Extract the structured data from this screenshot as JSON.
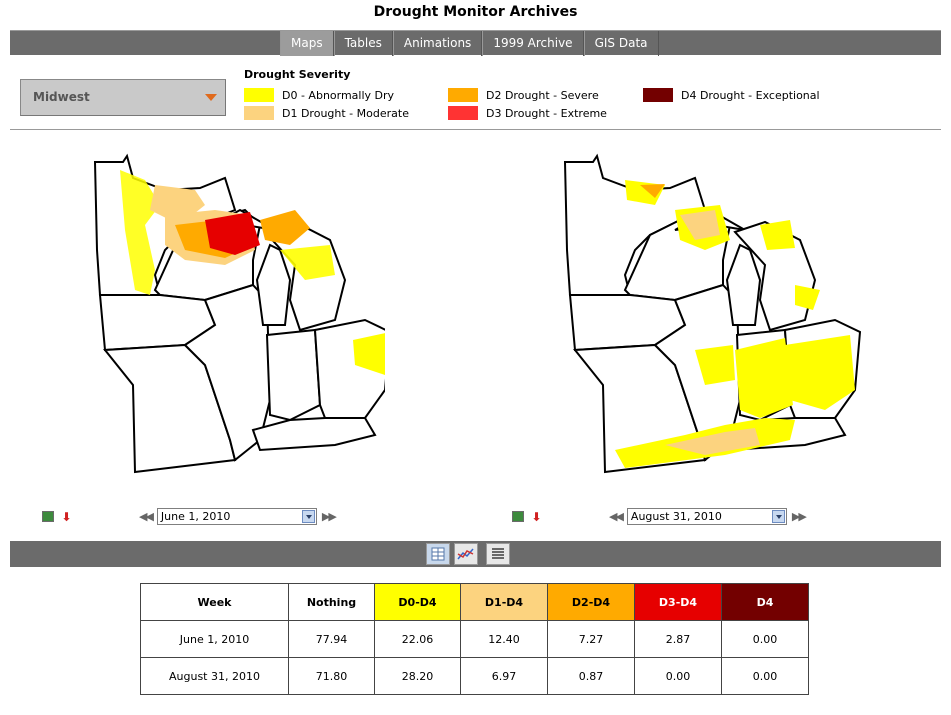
{
  "page_title": "Drought Monitor Archives",
  "nav": {
    "tabs": [
      {
        "label": "Maps",
        "active": true
      },
      {
        "label": "Tables"
      },
      {
        "label": "Animations"
      },
      {
        "label": "1999 Archive"
      },
      {
        "label": "GIS Data"
      }
    ]
  },
  "region_select": {
    "value": "Midwest"
  },
  "legend": {
    "title": "Drought Severity",
    "items": [
      {
        "label": "D0 - Abnormally Dry",
        "color": "#ffff00"
      },
      {
        "label": "D1 Drought - Moderate",
        "color": "#fcd37f"
      },
      {
        "label": "D2 Drought - Severe",
        "color": "#ffaa00"
      },
      {
        "label": "D3 Drought - Extreme",
        "color": "#ff3333"
      },
      {
        "label": "D4 Drought - Exceptional",
        "color": "#730000"
      }
    ]
  },
  "maps": {
    "left": {
      "date": "June 1, 2010",
      "icons": [
        "image-icon",
        "pdf-icon",
        "prev-icon",
        "next-icon"
      ]
    },
    "right": {
      "date": "August 31, 2010",
      "icons": [
        "image-icon",
        "pdf-icon",
        "prev-icon",
        "next-icon"
      ]
    }
  },
  "view_buttons": [
    {
      "icon": "table-view-icon",
      "active": true
    },
    {
      "icon": "chart-view-icon"
    },
    {
      "icon": "text-view-icon"
    }
  ],
  "stats_table": {
    "headers": [
      {
        "label": "Week",
        "bg": "#ffffff",
        "color": "#000000"
      },
      {
        "label": "Nothing",
        "bg": "#ffffff",
        "color": "#000000"
      },
      {
        "label": "D0-D4",
        "bg": "#ffff00",
        "color": "#000000"
      },
      {
        "label": "D1-D4",
        "bg": "#fcd37f",
        "color": "#000000"
      },
      {
        "label": "D2-D4",
        "bg": "#ffaa00",
        "color": "#000000"
      },
      {
        "label": "D3-D4",
        "bg": "#e60000",
        "color": "#ffffff"
      },
      {
        "label": "D4",
        "bg": "#730000",
        "color": "#ffffff"
      }
    ],
    "rows": [
      [
        "June 1, 2010",
        "77.94",
        "22.06",
        "12.40",
        "7.27",
        "2.87",
        "0.00"
      ],
      [
        "August 31, 2010",
        "71.80",
        "28.20",
        "6.97",
        "0.87",
        "0.00",
        "0.00"
      ]
    ]
  }
}
